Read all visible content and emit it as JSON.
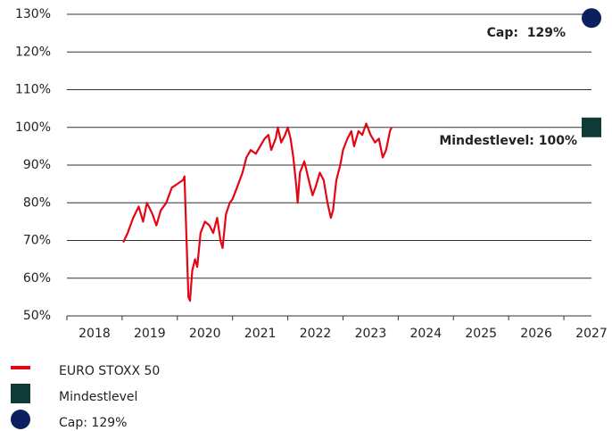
{
  "chart_data": {
    "type": "line",
    "categories": [
      "2018",
      "2019",
      "2020",
      "2021",
      "2022",
      "2023",
      "2024",
      "2025",
      "2026",
      "2027"
    ],
    "xlim": [
      2018,
      2027.5
    ],
    "ylim": [
      50,
      130
    ],
    "yticks": [
      {
        "value": 50,
        "label": "50%"
      },
      {
        "value": 60,
        "label": "60%"
      },
      {
        "value": 70,
        "label": "70%"
      },
      {
        "value": 80,
        "label": "80%"
      },
      {
        "value": 90,
        "label": "90%"
      },
      {
        "value": 100,
        "label": "100%"
      },
      {
        "value": 110,
        "label": "110%"
      },
      {
        "value": 120,
        "label": "120%"
      },
      {
        "value": 130,
        "label": "130%"
      }
    ],
    "grid": true,
    "series": [
      {
        "name": "EURO STOXX 50",
        "color": "#e30613",
        "x": [
          2019.02,
          2019.1,
          2019.2,
          2019.3,
          2019.38,
          2019.45,
          2019.55,
          2019.62,
          2019.7,
          2019.8,
          2019.9,
          2020.0,
          2020.1,
          2020.13,
          2020.16,
          2020.2,
          2020.23,
          2020.27,
          2020.32,
          2020.36,
          2020.42,
          2020.5,
          2020.58,
          2020.65,
          2020.72,
          2020.78,
          2020.82,
          2020.88,
          2020.95,
          2021.0,
          2021.08,
          2021.18,
          2021.25,
          2021.33,
          2021.42,
          2021.5,
          2021.58,
          2021.65,
          2021.7,
          2021.78,
          2021.82,
          2021.88,
          2021.95,
          2022.0,
          2022.05,
          2022.1,
          2022.15,
          2022.18,
          2022.22,
          2022.3,
          2022.38,
          2022.45,
          2022.5,
          2022.58,
          2022.65,
          2022.72,
          2022.78,
          2022.82,
          2022.88,
          2022.95,
          2023.0,
          2023.08,
          2023.15,
          2023.2,
          2023.28,
          2023.35,
          2023.42,
          2023.5,
          2023.58,
          2023.65,
          2023.72,
          2023.78,
          2023.85,
          2023.88
        ],
        "values": [
          69.5,
          72,
          76,
          79,
          75,
          80,
          77,
          74,
          78,
          80,
          84,
          85,
          86,
          87,
          73,
          55,
          54,
          62,
          65,
          63,
          72,
          75,
          74,
          72,
          76,
          70,
          68,
          77,
          80,
          81,
          84,
          88,
          92,
          94,
          93,
          95,
          97,
          98,
          94,
          97,
          100,
          96,
          98,
          100,
          97,
          92,
          85,
          80,
          88,
          91,
          86,
          82,
          84,
          88,
          86,
          80,
          76,
          78,
          86,
          90,
          94,
          97,
          99,
          95,
          99,
          98,
          101,
          98,
          96,
          97,
          92,
          94,
          99,
          100
        ]
      }
    ],
    "markers": [
      {
        "name": "Mindestlevel",
        "shape": "square",
        "color": "#0f3b36",
        "x": 2027.5,
        "value": 100,
        "label": "Mindestlevel: 100%"
      },
      {
        "name": "Cap: 129%",
        "shape": "circle",
        "color": "#0c1f5e",
        "x": 2027.5,
        "value": 129,
        "label": "Cap:  129%"
      }
    ]
  }
}
